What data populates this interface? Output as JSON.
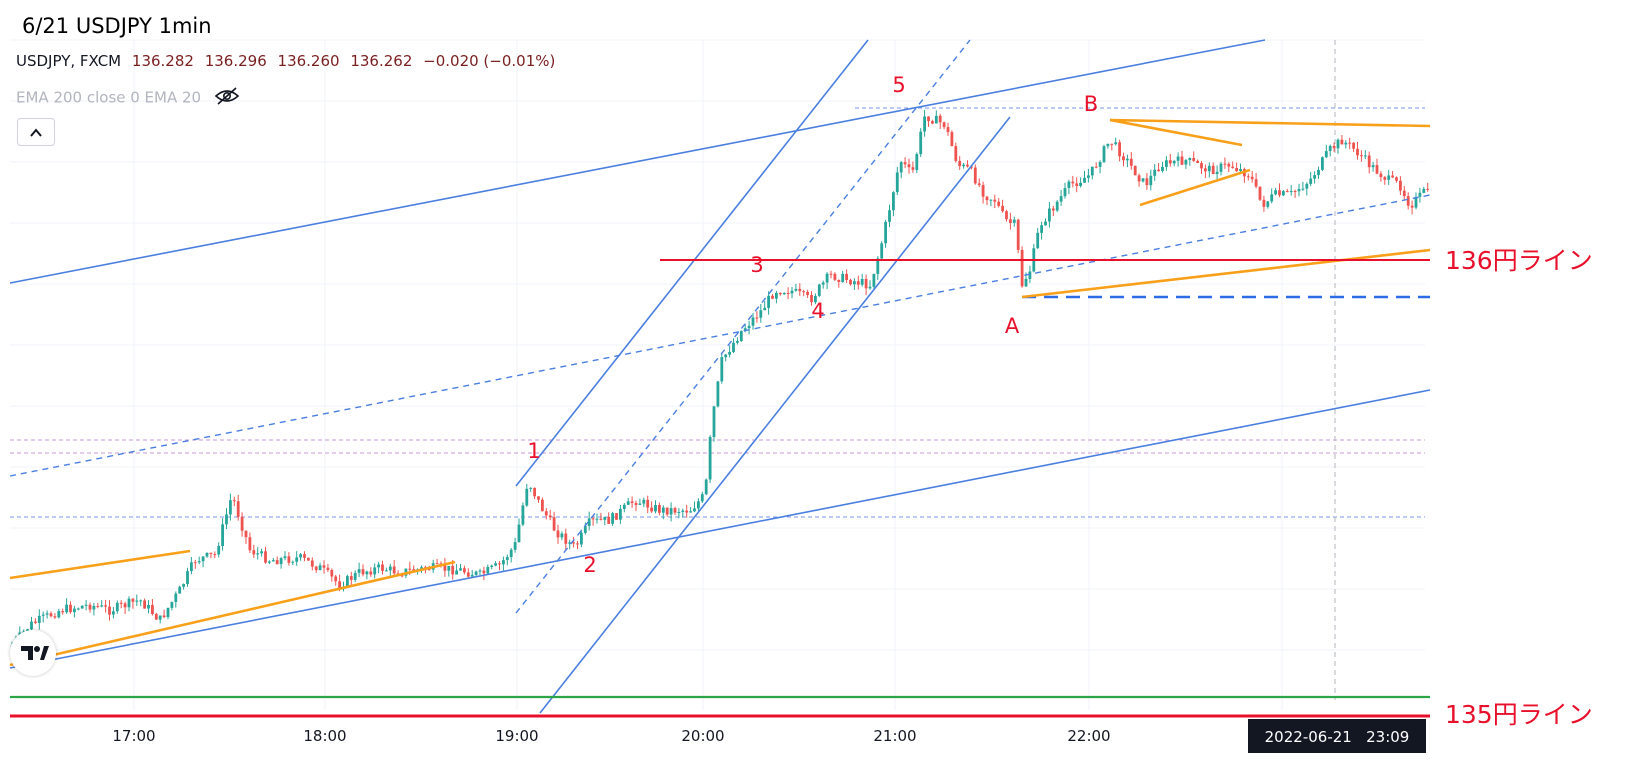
{
  "header": {
    "title": "6/21 USDJPY 1min",
    "symbol": "USDJPY, FXCM",
    "open": "136.282",
    "high": "136.296",
    "low": "136.260",
    "close": "136.262",
    "change": "−0.020 (−0.01%)",
    "indicator": "EMA 200 close 0 EMA 20"
  },
  "colors": {
    "up": "#26a69a",
    "down": "#ef5350",
    "trend_blue": "#4a7fe0",
    "orange": "#f9a01b",
    "red_line": "#e8102a",
    "green_line": "#2da445",
    "annotation": "#e8102a",
    "price_text": "#7a1f1f"
  },
  "icons": [
    "eye-slash-icon",
    "chevron-up-icon",
    "tradingview-logo-icon"
  ],
  "chart_data": {
    "type": "candlestick",
    "instrument": "USDJPY",
    "timeframe": "1min",
    "x_ticks": [
      "17:00",
      "18:00",
      "19:00",
      "20:00",
      "21:00",
      "22:00"
    ],
    "crosshair_label": "2022-06-21   23:09",
    "horizontal_lines": [
      {
        "label": "136円ライン",
        "price": 136.0,
        "color": "#e8102a"
      },
      {
        "label": "135円ライン",
        "price": 135.0,
        "color": "#e8102a"
      }
    ],
    "wave_labels": [
      "1",
      "2",
      "3",
      "4",
      "5",
      "A",
      "B"
    ]
  }
}
